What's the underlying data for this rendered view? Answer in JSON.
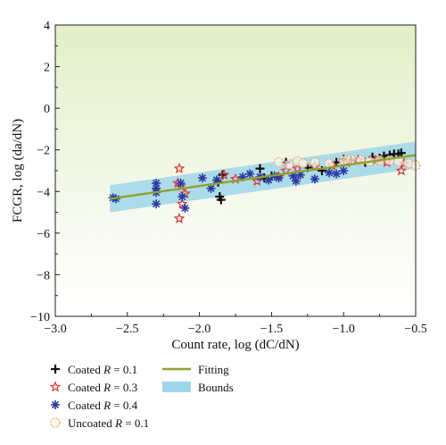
{
  "chart_data": {
    "type": "scatter",
    "xlabel": "Count rate, log (dC/dN)",
    "ylabel": "FCGR, log (da/dN)",
    "xlim": [
      -3.0,
      -0.5
    ],
    "ylim": [
      -10,
      4
    ],
    "x_ticks": [
      "−3.0",
      "−2.5",
      "−2.0",
      "−1.5",
      "−1.0",
      "−0.5"
    ],
    "x_tick_values": [
      -3.0,
      -2.5,
      -2.0,
      -1.5,
      -1.0,
      -0.5
    ],
    "y_ticks": [
      "4",
      "2",
      "0",
      "−2",
      "−4",
      "−6",
      "−8",
      "−10"
    ],
    "y_tick_values": [
      4,
      2,
      0,
      -2,
      -4,
      -6,
      -8,
      -10
    ],
    "grid": false,
    "legend_position": "bottom",
    "series": [
      {
        "name": "Coated R = 0.1",
        "legend_parts": [
          "Coated ",
          "R",
          " = 0.1"
        ],
        "marker": "plus",
        "color": "#111111",
        "points": [
          [
            -1.85,
            -4.4
          ],
          [
            -1.86,
            -4.25
          ],
          [
            -1.87,
            -3.55
          ],
          [
            -1.84,
            -3.2
          ],
          [
            -1.58,
            -2.9
          ],
          [
            -1.55,
            -3.35
          ],
          [
            -1.5,
            -3.25
          ],
          [
            -1.4,
            -2.6
          ],
          [
            -1.25,
            -2.85
          ],
          [
            -1.15,
            -3.0
          ],
          [
            -1.05,
            -2.6
          ],
          [
            -1.0,
            -2.45
          ],
          [
            -0.95,
            -2.5
          ],
          [
            -0.85,
            -2.6
          ],
          [
            -0.8,
            -2.35
          ],
          [
            -0.75,
            -2.4
          ],
          [
            -0.72,
            -2.3
          ],
          [
            -0.68,
            -2.25
          ],
          [
            -0.65,
            -2.2
          ],
          [
            -0.62,
            -2.2
          ],
          [
            -0.6,
            -2.15
          ]
        ]
      },
      {
        "name": "Coated R = 0.3",
        "legend_parts": [
          "Coated ",
          "R",
          " = 0.3"
        ],
        "marker": "star-open",
        "color": "#e03030",
        "points": [
          [
            -2.14,
            -2.9
          ],
          [
            -2.15,
            -3.6
          ],
          [
            -2.13,
            -3.75
          ],
          [
            -2.1,
            -4.1
          ],
          [
            -2.12,
            -4.6
          ],
          [
            -2.14,
            -5.3
          ],
          [
            -1.83,
            -3.2
          ],
          [
            -1.75,
            -3.4
          ],
          [
            -1.6,
            -3.5
          ],
          [
            -1.45,
            -3.3
          ],
          [
            -1.4,
            -3.0
          ],
          [
            -1.32,
            -2.9
          ],
          [
            -1.2,
            -2.8
          ],
          [
            -1.08,
            -2.75
          ],
          [
            -0.98,
            -2.6
          ],
          [
            -0.9,
            -2.5
          ],
          [
            -0.78,
            -2.5
          ],
          [
            -0.7,
            -2.6
          ],
          [
            -0.6,
            -3.0
          ],
          [
            -0.58,
            -2.65
          ]
        ]
      },
      {
        "name": "Coated R = 0.4",
        "legend_parts": [
          "Coated ",
          "R",
          " = 0.4"
        ],
        "marker": "asterisk",
        "color": "#2b3aa0",
        "points": [
          [
            -2.6,
            -4.3
          ],
          [
            -2.58,
            -4.35
          ],
          [
            -2.3,
            -3.6
          ],
          [
            -2.3,
            -3.85
          ],
          [
            -2.3,
            -4.05
          ],
          [
            -2.3,
            -4.6
          ],
          [
            -2.13,
            -3.6
          ],
          [
            -2.12,
            -4.25
          ],
          [
            -2.1,
            -4.8
          ],
          [
            -1.98,
            -3.35
          ],
          [
            -1.92,
            -3.85
          ],
          [
            -1.88,
            -3.45
          ],
          [
            -1.7,
            -3.3
          ],
          [
            -1.65,
            -3.15
          ],
          [
            -1.58,
            -3.3
          ],
          [
            -1.52,
            -3.45
          ],
          [
            -1.48,
            -3.25
          ],
          [
            -1.45,
            -3.35
          ],
          [
            -1.35,
            -3.25
          ],
          [
            -1.33,
            -3.5
          ],
          [
            -1.3,
            -3.2
          ],
          [
            -1.2,
            -3.4
          ],
          [
            -1.1,
            -3.1
          ],
          [
            -1.05,
            -3.15
          ],
          [
            -1.0,
            -3.0
          ]
        ]
      },
      {
        "name": "Uncoated R = 0.1",
        "legend_parts": [
          "Uncoated ",
          "R",
          " = 0.1"
        ],
        "marker": "dotted-circle",
        "color": "#e8aa70",
        "points": [
          [
            -1.45,
            -2.6
          ],
          [
            -1.38,
            -2.7
          ],
          [
            -1.32,
            -2.55
          ],
          [
            -1.28,
            -2.65
          ],
          [
            -1.2,
            -2.6
          ],
          [
            -1.1,
            -2.65
          ],
          [
            -1.0,
            -2.5
          ],
          [
            -0.95,
            -2.45
          ],
          [
            -0.88,
            -2.5
          ],
          [
            -0.82,
            -2.55
          ],
          [
            -0.75,
            -2.5
          ],
          [
            -0.68,
            -2.5
          ],
          [
            -0.62,
            -2.55
          ],
          [
            -0.55,
            -2.65
          ],
          [
            -0.5,
            -2.75
          ]
        ]
      }
    ],
    "fitting": {
      "name": "Fitting",
      "color": "#8fa32a",
      "points": [
        [
          -2.62,
          -4.35
        ],
        [
          -0.5,
          -2.25
        ]
      ]
    },
    "bounds": {
      "name": "Bounds",
      "color": "#9fd6ea",
      "upper": [
        [
          -2.62,
          -3.7
        ],
        [
          -0.5,
          -1.6
        ]
      ],
      "lower": [
        [
          -2.62,
          -5.0
        ],
        [
          -0.5,
          -2.9
        ]
      ]
    }
  }
}
